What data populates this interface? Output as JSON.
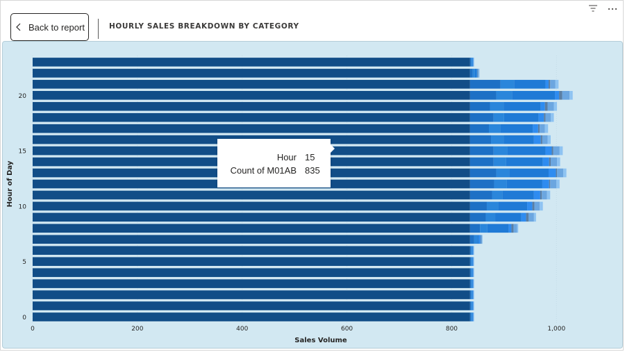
{
  "header": {
    "back_label": "Back to report",
    "title": "HOURLY SALES BREAKDOWN BY CATEGORY"
  },
  "icons": {
    "back": "chevron-left-icon",
    "filter": "filter-icon",
    "more": "more-options-icon"
  },
  "tooltip": {
    "rows": [
      {
        "key": "Hour",
        "value": "15"
      },
      {
        "key": "Count of M01AB",
        "value": "835"
      }
    ]
  },
  "colors": {
    "background": "#d2e8f2",
    "segments": [
      "#114d87",
      "#1d70c5",
      "#2a86db",
      "#1f7ad6",
      "#2f8cf0",
      "#5a7ea3",
      "#6ba6e0",
      "#8ec3f2"
    ]
  },
  "chart_data": {
    "type": "bar",
    "orientation": "horizontal",
    "stacked": true,
    "xlabel": "Sales Volume",
    "ylabel": "Hour of Day",
    "xlim": [
      0,
      1100
    ],
    "x_ticks": [
      0,
      200,
      400,
      600,
      800,
      1000
    ],
    "x_tick_labels": [
      "0",
      "200",
      "400",
      "600",
      "800",
      "1,000"
    ],
    "y_ticks": [
      0,
      5,
      10,
      15,
      20
    ],
    "categories": [
      0,
      1,
      2,
      3,
      4,
      5,
      6,
      7,
      8,
      9,
      10,
      11,
      12,
      13,
      14,
      15,
      16,
      17,
      18,
      19,
      20,
      21,
      22,
      23
    ],
    "series": [
      {
        "values": [
          835,
          835,
          835,
          835,
          835,
          835,
          835,
          835,
          835,
          835,
          835,
          835,
          835,
          835,
          835,
          835,
          835,
          835,
          835,
          835,
          835,
          835,
          835,
          835
        ]
      },
      {
        "values": [
          2,
          2,
          2,
          2,
          2,
          2,
          2,
          8,
          19,
          30,
          32,
          42,
          46,
          50,
          45,
          45,
          40,
          36,
          45,
          38,
          50,
          58,
          5,
          2
        ]
      },
      {
        "values": [
          2,
          2,
          2,
          2,
          2,
          2,
          2,
          6,
          14,
          18,
          22,
          20,
          24,
          25,
          24,
          26,
          24,
          22,
          20,
          26,
          30,
          26,
          4,
          2
        ]
      },
      {
        "values": [
          1,
          1,
          1,
          1,
          1,
          1,
          1,
          3,
          41,
          50,
          55,
          60,
          68,
          75,
          70,
          73,
          58,
          62,
          66,
          71,
          82,
          60,
          4,
          1
        ]
      },
      {
        "values": [
          1,
          1,
          1,
          1,
          1,
          1,
          1,
          3,
          5,
          9,
          10,
          12,
          13,
          14,
          12,
          12,
          13,
          10,
          10,
          8,
          8,
          6,
          1,
          1
        ]
      },
      {
        "values": [
          0,
          0,
          0,
          0,
          0,
          0,
          0,
          1,
          4,
          5,
          4,
          3,
          2,
          2,
          3,
          3,
          3,
          3,
          3,
          5,
          6,
          3,
          1,
          0
        ]
      },
      {
        "values": [
          1,
          1,
          1,
          1,
          1,
          1,
          1,
          2,
          7,
          10,
          10,
          10,
          12,
          12,
          12,
          12,
          10,
          10,
          10,
          12,
          14,
          10,
          2,
          1
        ]
      },
      {
        "values": [
          1,
          1,
          1,
          1,
          1,
          1,
          1,
          1,
          2,
          4,
          6,
          6,
          6,
          6,
          6,
          6,
          6,
          6,
          6,
          6,
          6,
          6,
          1,
          1
        ]
      }
    ]
  }
}
